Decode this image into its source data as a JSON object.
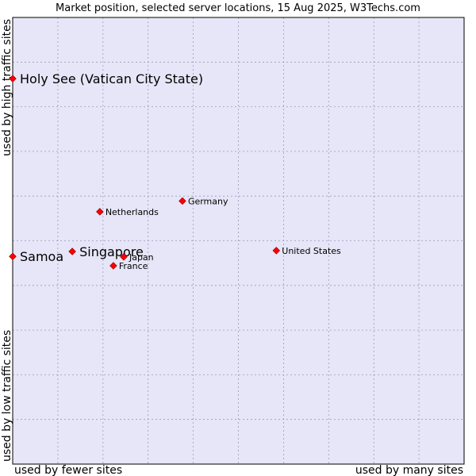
{
  "chart_data": {
    "type": "scatter",
    "title": "Market position, selected server locations, 15 Aug 2025, W3Techs.com",
    "xlabel_low": "used by fewer sites",
    "xlabel_high": "used by many sites",
    "ylabel_low": "used by low traffic sites",
    "ylabel_high": "used by high traffic sites",
    "xlim": [
      0,
      100
    ],
    "ylim": [
      0,
      100
    ],
    "grid": true,
    "points": [
      {
        "name": "Holy See (Vatican City State)",
        "x": 0.0,
        "y": 86.3,
        "highlight": true
      },
      {
        "name": "Samoa",
        "x": 0.0,
        "y": 46.5,
        "highlight": true
      },
      {
        "name": "Singapore",
        "x": 13.2,
        "y": 47.6,
        "highlight": true
      },
      {
        "name": "Netherlands",
        "x": 19.3,
        "y": 56.5,
        "highlight": false
      },
      {
        "name": "Germany",
        "x": 37.6,
        "y": 58.9,
        "highlight": false
      },
      {
        "name": "Japan",
        "x": 24.6,
        "y": 46.4,
        "highlight": false
      },
      {
        "name": "France",
        "x": 22.3,
        "y": 44.4,
        "highlight": false
      },
      {
        "name": "United States",
        "x": 58.4,
        "y": 47.8,
        "highlight": false
      }
    ]
  },
  "colors": {
    "plot_bg": "#e6e6f8",
    "marker": "#ff0000",
    "marker_edge": "#aa0000",
    "grid": "#9a9aba",
    "frame": "#000000"
  }
}
